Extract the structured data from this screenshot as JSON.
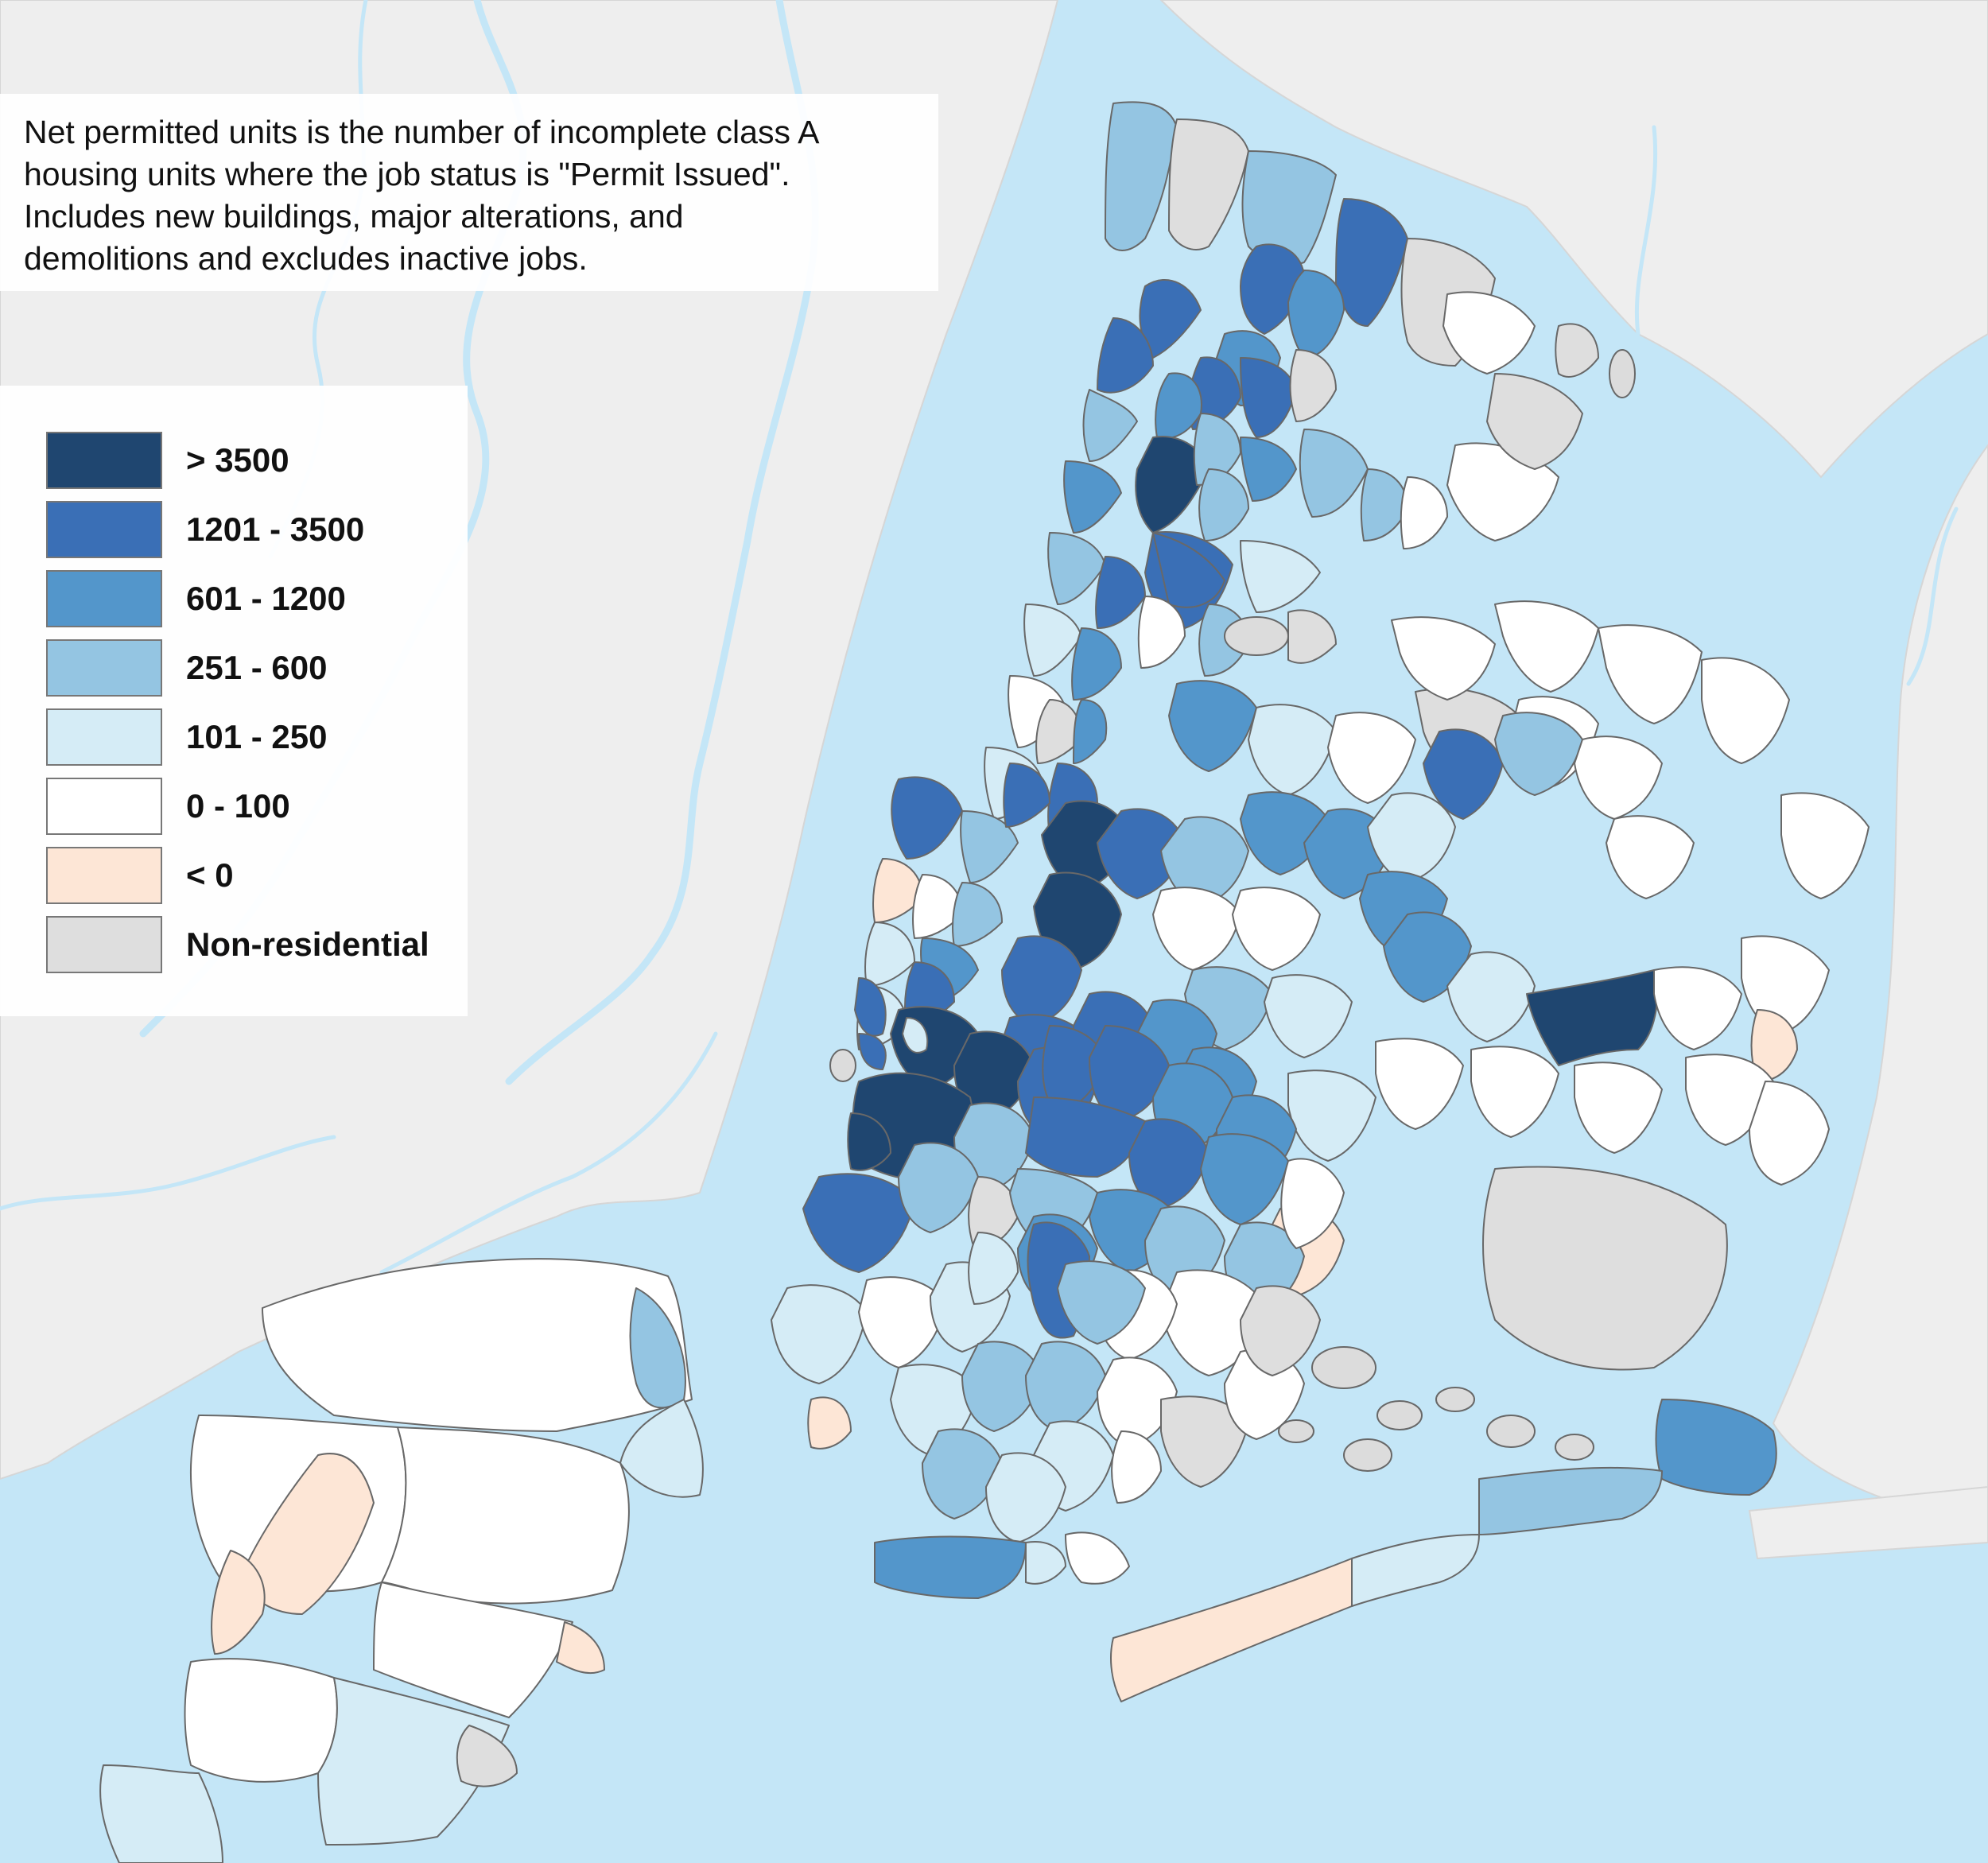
{
  "note": {
    "lines": [
      "Net permitted units is the number of incomplete class A",
      "housing units where the job status is \"Permit Issued\".",
      "Includes new buildings, major alterations, and",
      "demolitions and excludes inactive jobs."
    ]
  },
  "legend": {
    "items": [
      {
        "label": "> 3500",
        "color": "#1f4670"
      },
      {
        "label": "1201 - 3500",
        "color": "#3a6fb6"
      },
      {
        "label": "601 - 1200",
        "color": "#5396cb"
      },
      {
        "label": "251 - 600",
        "color": "#94c5e2"
      },
      {
        "label": "101 - 250",
        "color": "#d5ecf6"
      },
      {
        "label": "0 - 100",
        "color": "#ffffff"
      },
      {
        "label": "< 0",
        "color": "#fde6d6"
      },
      {
        "label": "Non-residential",
        "color": "#dedede"
      }
    ]
  },
  "colors": {
    "water": "#c4e6f7",
    "land_outside": "#eeeeee",
    "boundary": "#686868"
  }
}
